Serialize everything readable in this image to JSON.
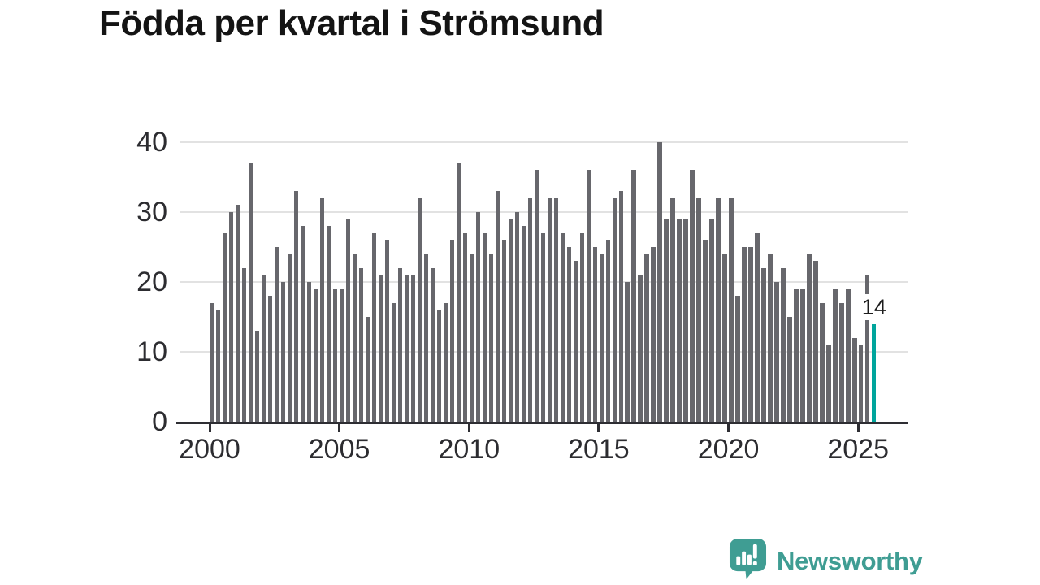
{
  "title": "Födda per kvartal i Strömsund",
  "chart_data": {
    "type": "bar",
    "title": "Födda per kvartal i Strömsund",
    "x_start_year": 2000,
    "period": "quarterly",
    "x_tick_labels": [
      "2000",
      "2005",
      "2010",
      "2015",
      "2020",
      "2025"
    ],
    "y_tick_labels": [
      "0",
      "10",
      "20",
      "30",
      "40"
    ],
    "ylim": [
      0,
      40
    ],
    "grid": true,
    "values": [
      17,
      16,
      27,
      30,
      31,
      22,
      37,
      13,
      21,
      18,
      25,
      20,
      24,
      33,
      28,
      20,
      19,
      32,
      28,
      19,
      19,
      29,
      24,
      22,
      15,
      27,
      21,
      26,
      17,
      22,
      21,
      21,
      32,
      24,
      22,
      16,
      17,
      26,
      37,
      27,
      24,
      30,
      27,
      24,
      33,
      26,
      29,
      30,
      28,
      32,
      36,
      27,
      32,
      32,
      27,
      25,
      23,
      27,
      36,
      25,
      24,
      26,
      32,
      33,
      20,
      36,
      21,
      24,
      25,
      40,
      29,
      32,
      29,
      29,
      36,
      32,
      26,
      29,
      32,
      24,
      32,
      18,
      25,
      25,
      27,
      22,
      24,
      20,
      22,
      15,
      19,
      19,
      24,
      23,
      17,
      11,
      19,
      17,
      19,
      12,
      11,
      21,
      14
    ],
    "highlight": {
      "index": 102,
      "value": 14,
      "label": "14"
    },
    "bar_color": "#67676c",
    "highlight_color": "#00a59c",
    "gridline_color": "#e2e2e2",
    "axis_color": "#2e2e33"
  },
  "branding": {
    "logo_text": "Newsworthy",
    "logo_color": "#3f9d93",
    "logo_icon": "speech-bubble-bar-chart-icon"
  }
}
